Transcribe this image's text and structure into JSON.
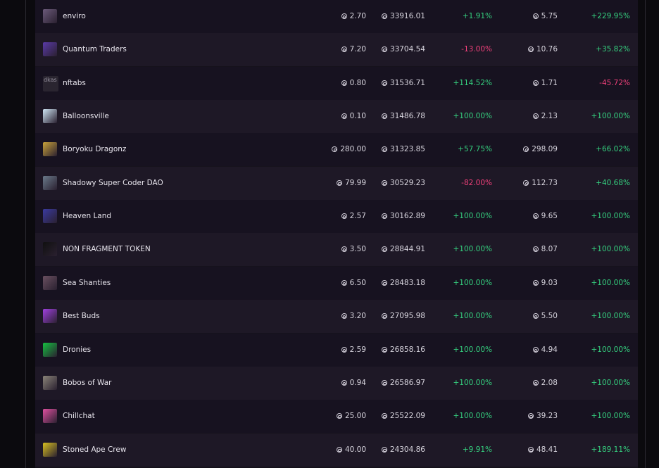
{
  "rows": [
    {
      "name": "enviro",
      "floor": "2.70",
      "volume": "33916.01",
      "change1": "+1.91%",
      "change1_dir": "pos",
      "avg": "5.75",
      "change2": "+229.95%",
      "change2_dir": "pos",
      "avatar_color": "#6b5a7a"
    },
    {
      "name": "Quantum Traders",
      "floor": "7.20",
      "volume": "33704.54",
      "change1": "-13.00%",
      "change1_dir": "neg",
      "avg": "10.76",
      "change2": "+35.82%",
      "change2_dir": "pos",
      "avatar_color": "#5a3aa8"
    },
    {
      "name": "nftabs",
      "floor": "0.80",
      "volume": "31536.71",
      "change1": "+114.52%",
      "change1_dir": "pos",
      "avg": "1.71",
      "change2": "-45.72%",
      "change2_dir": "neg",
      "avatar_color": "broken",
      "avatar_alt": "dkas"
    },
    {
      "name": "Balloonsville",
      "floor": "0.10",
      "volume": "31486.78",
      "change1": "+100.00%",
      "change1_dir": "pos",
      "avg": "2.13",
      "change2": "+100.00%",
      "change2_dir": "pos",
      "avatar_color": "#cfe6f5"
    },
    {
      "name": "Boryoku Dragonz",
      "floor": "280.00",
      "volume": "31323.85",
      "change1": "+57.75%",
      "change1_dir": "pos",
      "avg": "298.09",
      "change2": "+66.02%",
      "change2_dir": "pos",
      "avatar_color": "#c9a23a"
    },
    {
      "name": "Shadowy Super Coder DAO",
      "floor": "79.99",
      "volume": "30529.23",
      "change1": "-82.00%",
      "change1_dir": "neg",
      "avg": "112.73",
      "change2": "+40.68%",
      "change2_dir": "pos",
      "avatar_color": "#6a7a8a"
    },
    {
      "name": "Heaven Land",
      "floor": "2.57",
      "volume": "30162.89",
      "change1": "+100.00%",
      "change1_dir": "pos",
      "avg": "9.65",
      "change2": "+100.00%",
      "change2_dir": "pos",
      "avatar_color": "#3a3aa0"
    },
    {
      "name": "NON FRAGMENT TOKEN",
      "floor": "3.50",
      "volume": "28844.91",
      "change1": "+100.00%",
      "change1_dir": "pos",
      "avg": "8.07",
      "change2": "+100.00%",
      "change2_dir": "pos",
      "avatar_color": "#101010"
    },
    {
      "name": "Sea Shanties",
      "floor": "6.50",
      "volume": "28483.18",
      "change1": "+100.00%",
      "change1_dir": "pos",
      "avg": "9.03",
      "change2": "+100.00%",
      "change2_dir": "pos",
      "avatar_color": "#6a5060"
    },
    {
      "name": "Best Buds",
      "floor": "3.20",
      "volume": "27095.98",
      "change1": "+100.00%",
      "change1_dir": "pos",
      "avg": "5.50",
      "change2": "+100.00%",
      "change2_dir": "pos",
      "avatar_color": "#a040e0"
    },
    {
      "name": "Dronies",
      "floor": "2.59",
      "volume": "26858.16",
      "change1": "+100.00%",
      "change1_dir": "pos",
      "avg": "4.94",
      "change2": "+100.00%",
      "change2_dir": "pos",
      "avatar_color": "#15c040"
    },
    {
      "name": "Bobos of War",
      "floor": "0.94",
      "volume": "26586.97",
      "change1": "+100.00%",
      "change1_dir": "pos",
      "avg": "2.08",
      "change2": "+100.00%",
      "change2_dir": "pos",
      "avatar_color": "#8a8478"
    },
    {
      "name": "Chillchat",
      "floor": "25.00",
      "volume": "25522.09",
      "change1": "+100.00%",
      "change1_dir": "pos",
      "avg": "39.23",
      "change2": "+100.00%",
      "change2_dir": "pos",
      "avatar_color": "#e050a0"
    },
    {
      "name": "Stoned Ape Crew",
      "floor": "40.00",
      "volume": "24304.86",
      "change1": "+9.91%",
      "change1_dir": "pos",
      "avg": "48.41",
      "change2": "+189.11%",
      "change2_dir": "pos",
      "avatar_color": "#d8c020"
    }
  ]
}
